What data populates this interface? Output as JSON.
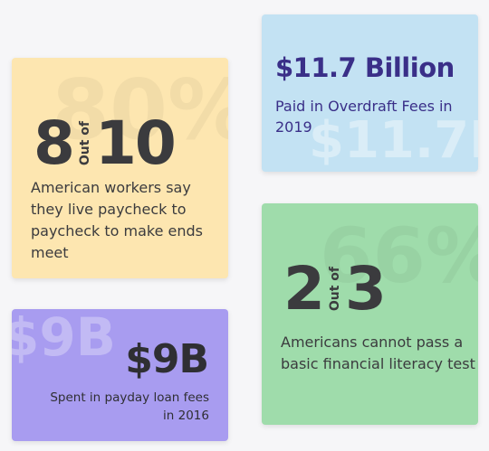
{
  "cards": {
    "workers": {
      "watermark": "80%",
      "numerator": "8",
      "out_of": "Out of",
      "denominator": "10",
      "description": "American workers say they live paycheck to paycheck to make ends meet",
      "color": "#fde6b0"
    },
    "overdraft": {
      "watermark": "$11.7B",
      "headline": "$11.7 Billion",
      "description": "Paid in Overdraft Fees in 2019",
      "color": "#c3e2f3"
    },
    "literacy": {
      "watermark": "66%",
      "numerator": "2",
      "out_of": "Out of",
      "denominator": "3",
      "description": "Americans cannot pass a basic financial literacy test",
      "color": "#9fdcab"
    },
    "payday": {
      "watermark": "$9B",
      "headline": "$9B",
      "description": "Spent in payday loan fees in 2016",
      "color": "#a89cf0"
    }
  }
}
